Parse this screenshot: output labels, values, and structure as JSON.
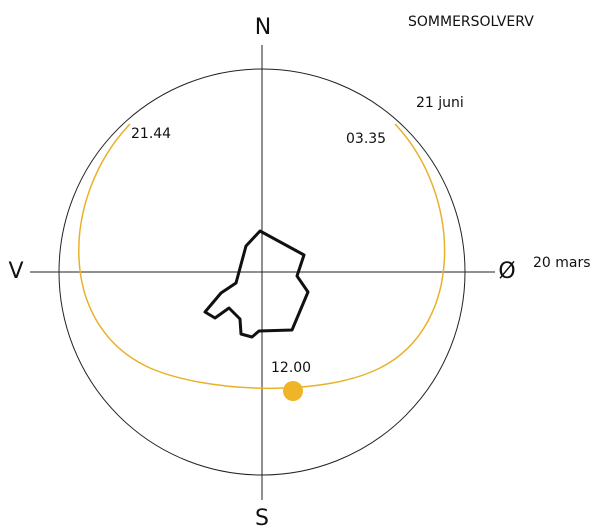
{
  "title": "SOMMERSOLVERV",
  "compass": {
    "north": "N",
    "south": "S",
    "west": "V",
    "east": "Ø"
  },
  "equinox_label": "20 mars",
  "solstice_label": "21 juni",
  "sunset_time": "21.44",
  "sunrise_time": "03.35",
  "noon_time": "12.00"
}
